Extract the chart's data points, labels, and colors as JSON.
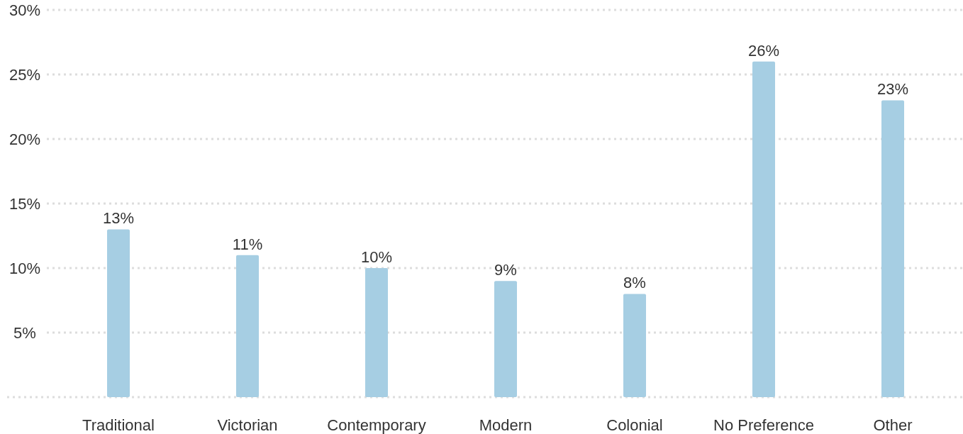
{
  "chart_data": {
    "type": "bar",
    "categories": [
      "Traditional",
      "Victorian",
      "Contemporary",
      "Modern",
      "Colonial",
      "No Preference",
      "Other"
    ],
    "values": [
      13,
      11,
      10,
      9,
      8,
      26,
      23
    ],
    "color": "#a6cee3",
    "ylim": [
      0,
      30
    ],
    "yticks": [
      {
        "value": 5,
        "label": "5%"
      },
      {
        "value": 10,
        "label": "10%"
      },
      {
        "value": 15,
        "label": "15%"
      },
      {
        "value": 20,
        "label": "20%"
      },
      {
        "value": 25,
        "label": "25%"
      },
      {
        "value": 30,
        "label": "30%"
      }
    ],
    "value_labels": [
      "13%",
      "11%",
      "10%",
      "9%",
      "8%",
      "26%",
      "23%"
    ],
    "grid": "y"
  }
}
